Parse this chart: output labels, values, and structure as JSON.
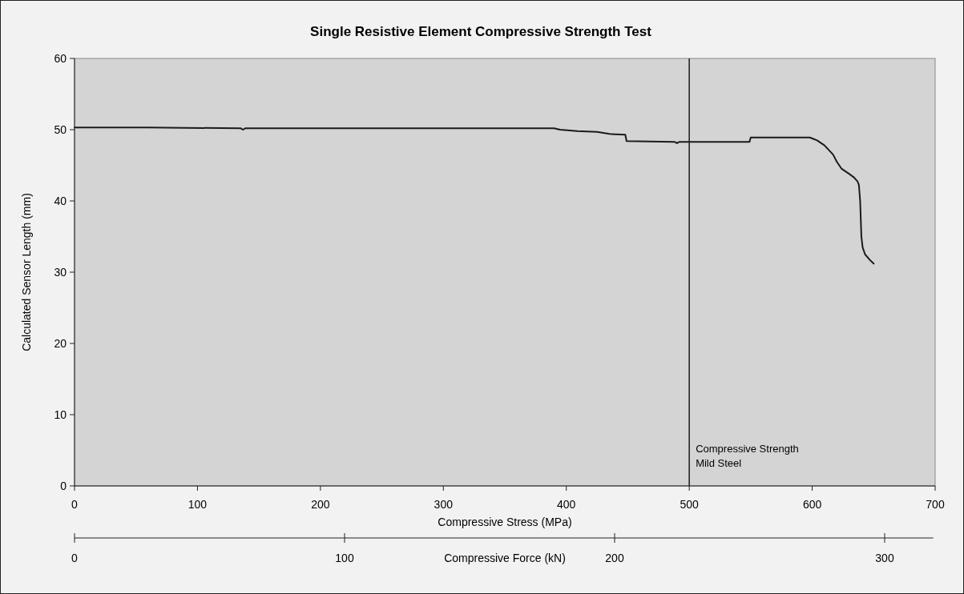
{
  "chart_data": {
    "type": "line",
    "title": "Single Resistive Element Compressive Strength Test",
    "xlabel": "Compressive Stress (MPa)",
    "ylabel": "Calculated Sensor Length (mm)",
    "x2label": "Compressive Force (kN)",
    "xlim": [
      0,
      700
    ],
    "xticks": [
      0,
      100,
      200,
      300,
      400,
      500,
      600,
      700
    ],
    "ylim": [
      0,
      60
    ],
    "yticks": [
      0,
      10,
      20,
      30,
      40,
      50,
      60
    ],
    "x2lim": [
      0,
      318
    ],
    "x2ticks": [
      0,
      100,
      200,
      300
    ],
    "grid": false,
    "marker": "none",
    "line_style": "solid",
    "series": [
      {
        "color": "#1a1a1a",
        "x": [
          0,
          60,
          135,
          137,
          139,
          200,
          300,
          390,
          395,
          409,
          425,
          435,
          448,
          449,
          488,
          490,
          492,
          549,
          550,
          598,
          604,
          610,
          617,
          620,
          624,
          630,
          634,
          637,
          638,
          639,
          640,
          641,
          643,
          647,
          650
        ],
        "values": [
          50.3,
          50.3,
          50.2,
          50.0,
          50.2,
          50.2,
          50.2,
          50.2,
          50.0,
          49.8,
          49.7,
          49.4,
          49.3,
          48.4,
          48.3,
          48.1,
          48.3,
          48.3,
          48.9,
          48.9,
          48.5,
          47.8,
          46.5,
          45.5,
          44.5,
          43.8,
          43.3,
          42.7,
          42.2,
          40,
          35,
          33.5,
          32.5,
          31.7,
          31.2
        ]
      }
    ],
    "ref_lines": [
      {
        "axis": "x",
        "value": 500,
        "label": "Compressive Strength\nMild Steel",
        "color": "#1a1a1a",
        "line_style": "solid"
      }
    ]
  }
}
